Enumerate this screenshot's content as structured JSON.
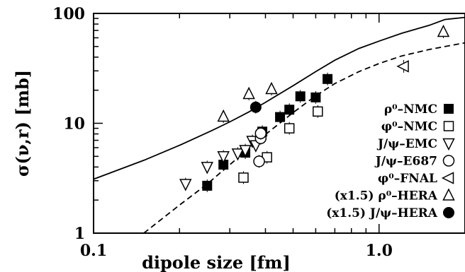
{
  "chart_data": {
    "type": "scatter",
    "title": "",
    "xlabel": "dipole size [fm]",
    "ylabel": "σ(ν,r) [mb]",
    "xscale": "log",
    "yscale": "log",
    "xlim": [
      0.1,
      2.0
    ],
    "ylim": [
      1,
      100
    ],
    "xticks": [
      {
        "value": 0.1,
        "label": "0.1"
      },
      {
        "value": 1.0,
        "label": "1.0"
      }
    ],
    "yticks": [
      {
        "value": 1,
        "label": "1"
      },
      {
        "value": 10,
        "label": "10"
      },
      {
        "value": 100,
        "label": "100"
      }
    ],
    "grid": false,
    "legend_position": "right",
    "curves": [
      {
        "style": "solid",
        "x": [
          0.1,
          0.15,
          0.2,
          0.26,
          0.3,
          0.35,
          0.4,
          0.5,
          0.6,
          0.7,
          0.85,
          1.0,
          1.2,
          1.5,
          1.7,
          2.0
        ],
        "y": [
          3.1,
          4.6,
          6.3,
          8.6,
          10.3,
          12.7,
          15.5,
          22.0,
          29.5,
          37.5,
          48.0,
          56.0,
          66.0,
          78.0,
          88.0,
          92.0
        ]
      },
      {
        "style": "dashed",
        "x": [
          0.15,
          0.2,
          0.25,
          0.3,
          0.35,
          0.4,
          0.5,
          0.6,
          0.7,
          0.85,
          1.0,
          1.2,
          1.5,
          2.0
        ],
        "y": [
          1.0,
          1.8,
          2.8,
          4.2,
          5.9,
          7.9,
          12.5,
          17.8,
          23.0,
          29.5,
          35.0,
          41.0,
          47.0,
          54.0
        ]
      }
    ],
    "series": [
      {
        "name": "ρ⁰–NMC",
        "marker": "filled-square",
        "x": [
          0.25,
          0.285,
          0.34,
          0.39,
          0.45,
          0.485,
          0.53,
          0.6,
          0.66
        ],
        "y": [
          2.7,
          4.2,
          5.4,
          8.4,
          11.4,
          13.3,
          17.6,
          17.2,
          25.3
        ]
      },
      {
        "name": "φ⁰–NMC",
        "marker": "open-square",
        "x": [
          0.335,
          0.405,
          0.485,
          0.61
        ],
        "y": [
          3.2,
          4.9,
          9.0,
          12.8
        ]
      },
      {
        "name": "J/ψ–EMC",
        "marker": "open-triangle-down",
        "x": [
          0.21,
          0.25,
          0.285,
          0.32,
          0.34,
          0.36,
          0.37
        ],
        "y": [
          2.8,
          4.0,
          5.0,
          5.3,
          5.7,
          6.9,
          6.3
        ]
      },
      {
        "name": "J/ψ–E687",
        "marker": "open-circle",
        "x": [
          0.38,
          0.385,
          0.385
        ],
        "y": [
          4.5,
          7.3,
          8.1
        ]
      },
      {
        "name": "φ⁰–FNAL",
        "marker": "open-triangle-left",
        "x": [
          1.22
        ],
        "y": [
          33.0
        ]
      },
      {
        "name": "(x1.5) ρ⁰–HERA",
        "marker": "open-triangle-up",
        "x": [
          0.285,
          0.35,
          0.42,
          1.68
        ],
        "y": [
          11.5,
          18.5,
          20.5,
          68.0
        ]
      },
      {
        "name": "(x1.5) J/ψ–HERA",
        "marker": "filled-circle",
        "x": [
          0.37
        ],
        "y": [
          14.0
        ]
      }
    ]
  }
}
